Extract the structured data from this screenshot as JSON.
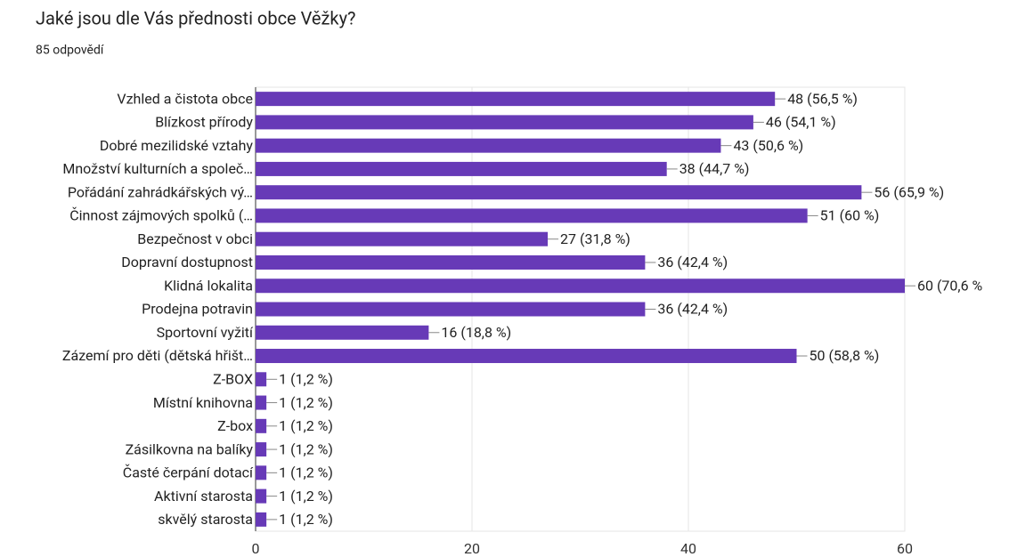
{
  "chart_data": {
    "type": "bar",
    "horizontal": true,
    "title": "Jaké jsou dle Vás přednosti obce Věžky?",
    "subtitle": "85 odpovědí",
    "categories": [
      "Vzhled a čistota obce",
      "Blízkost přírody",
      "Dobré mezilidské vztahy",
      "Množství kulturních a společ…",
      "Pořádání zahrádkářských vý…",
      "Činnost zájmových spolků (…",
      "Bezpečnost v obci",
      "Dopravní dostupnost",
      "Klidná lokalita",
      "Prodejna potravin",
      "Sportovní vyžití",
      "Zázemí pro děti (dětská hřišt…",
      "Z-BOX",
      "Místní knihovna",
      "Z-box",
      "Zásilkovna na balíky",
      "Časté čerpání dotací",
      "Aktivní starosta",
      "skvělý starosta"
    ],
    "values": [
      48,
      46,
      43,
      38,
      56,
      51,
      27,
      36,
      60,
      36,
      16,
      50,
      1,
      1,
      1,
      1,
      1,
      1,
      1
    ],
    "value_labels": [
      "48 (56,5 %)",
      "46 (54,1 %)",
      "43 (50,6 %)",
      "38 (44,7 %)",
      "56 (65,9 %)",
      "51 (60 %)",
      "27 (31,8 %)",
      "36 (42,4 %)",
      "60 (70,6 %",
      "36 (42,4 %)",
      "16 (18,8 %)",
      "50 (58,8 %)",
      "1 (1,2 %)",
      "1 (1,2 %)",
      "1 (1,2 %)",
      "1 (1,2 %)",
      "1 (1,2 %)",
      "1 (1,2 %)",
      "1 (1,2 %)"
    ],
    "color": "#673ab7",
    "xlim": [
      0,
      60
    ],
    "xticks": [
      0,
      20,
      40,
      60
    ],
    "grid": true
  }
}
